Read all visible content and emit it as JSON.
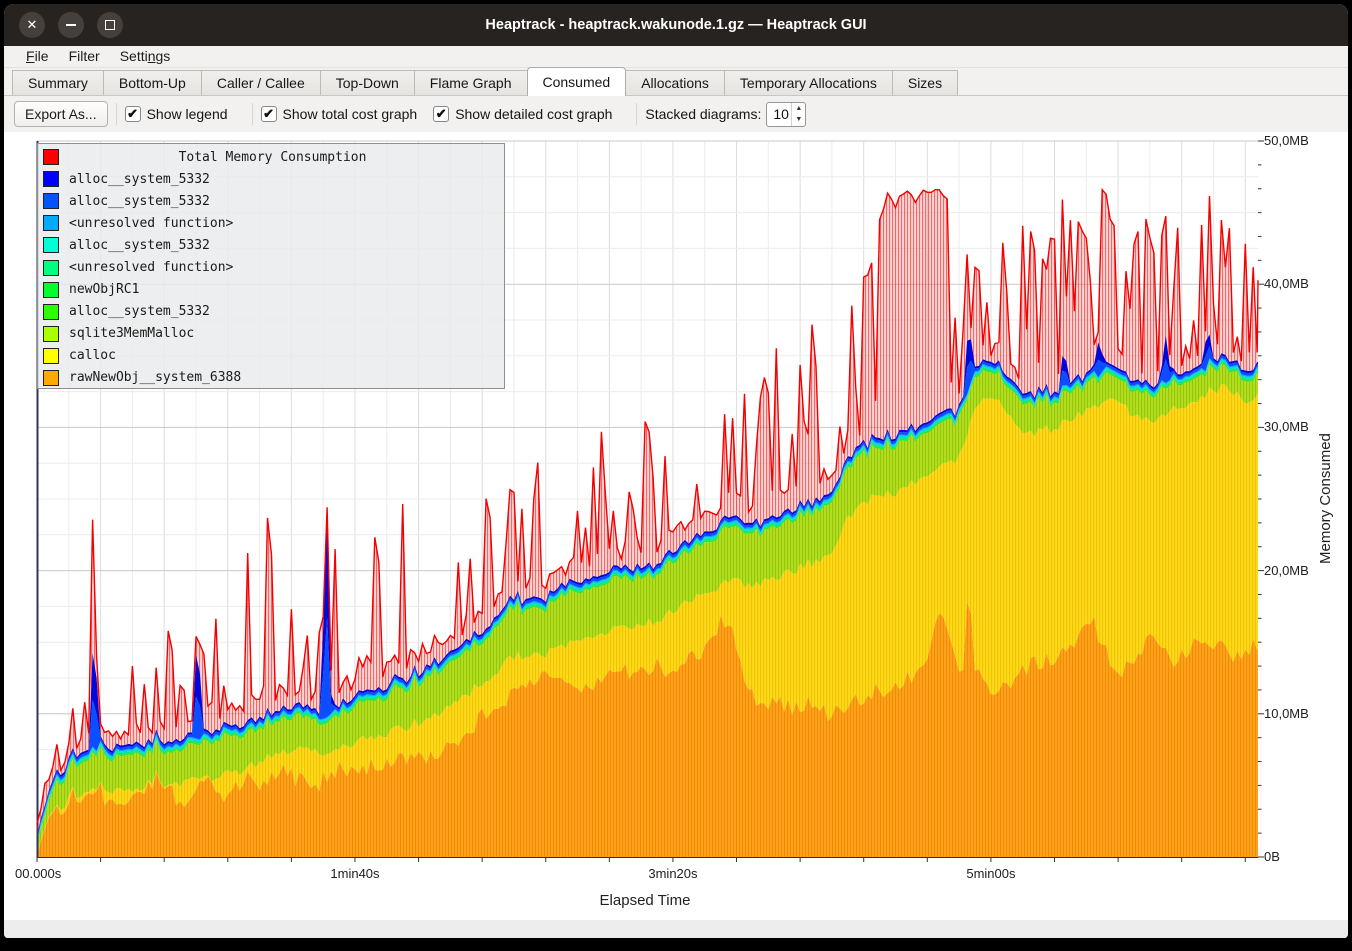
{
  "window": {
    "title": "Heaptrack - heaptrack.wakunode.1.gz — Heaptrack GUI",
    "controls": {
      "close": "✕",
      "minimize": "minimize",
      "maximize": "maximize"
    }
  },
  "menu_bar": {
    "items": [
      {
        "pre": "",
        "accel": "F",
        "post": "ile"
      },
      {
        "pre": "",
        "accel": "",
        "post": "Filter"
      },
      {
        "pre": "Setti",
        "accel": "n",
        "post": "gs"
      }
    ]
  },
  "tabs": {
    "active": "Consumed",
    "items": [
      "Summary",
      "Bottom-Up",
      "Caller / Callee",
      "Top-Down",
      "Flame Graph",
      "Consumed",
      "Allocations",
      "Temporary Allocations",
      "Sizes"
    ]
  },
  "toolbar": {
    "export_label": "Export As...",
    "checkboxes": [
      {
        "label": "Show legend",
        "checked": true,
        "mark": "✔"
      },
      {
        "label": "Show total cost graph",
        "checked": true,
        "mark": "✔"
      },
      {
        "label": "Show detailed cost graph",
        "checked": true,
        "mark": "✔"
      }
    ],
    "stacked_label": "Stacked diagrams:",
    "stacked_value": "10"
  },
  "chart_data": {
    "type": "area",
    "stacked": true,
    "title": "",
    "xlabel": "Elapsed Time",
    "ylabel": "Memory Consumed",
    "x_unit": "seconds",
    "x_range": [
      0,
      384
    ],
    "ylim": [
      0,
      50
    ],
    "grid": {
      "minor_x_s": 10,
      "major_x_s": 20,
      "minor_y_mb": 2.5,
      "major_y_mb": 10
    },
    "x_ticks": [
      {
        "t": 0,
        "label": "00.000s"
      },
      {
        "t": 100,
        "label": "1min40s"
      },
      {
        "t": 200,
        "label": "3min20s"
      },
      {
        "t": 300,
        "label": "5min00s"
      }
    ],
    "x_minor_tick_interval_s": 20,
    "y_ticks": [
      {
        "mb": 0,
        "label": "0B"
      },
      {
        "mb": 10,
        "label": "10,0MB"
      },
      {
        "mb": 20,
        "label": "20,0MB"
      },
      {
        "mb": 30,
        "label": "30,0MB"
      },
      {
        "mb": 40,
        "label": "40,0MB"
      },
      {
        "mb": 50,
        "label": "50,0MB"
      }
    ],
    "legend": [
      {
        "label": "Total Memory Consumption",
        "color": "#ff0000",
        "title_row": true
      },
      {
        "label": "alloc__system_5332",
        "color": "#0000ff"
      },
      {
        "label": "alloc__system_5332",
        "color": "#0055ff"
      },
      {
        "label": "<unresolved function>",
        "color": "#00aaff"
      },
      {
        "label": "alloc__system_5332",
        "color": "#00ffd5"
      },
      {
        "label": "<unresolved function>",
        "color": "#00ff80"
      },
      {
        "label": "newObjRC1",
        "color": "#00ff2b"
      },
      {
        "label": "alloc__system_5332",
        "color": "#2bff00"
      },
      {
        "label": "sqlite3MemMalloc",
        "color": "#aaff00"
      },
      {
        "label": "calloc",
        "color": "#ffff00"
      },
      {
        "label": "rawNewObj__system_6388",
        "color": "#ffaa00"
      }
    ],
    "series": {
      "orange_rawNewObj_mb": [
        [
          0,
          0.1
        ],
        [
          2,
          1.8
        ],
        [
          5,
          3.2
        ],
        [
          8,
          3.6
        ],
        [
          12,
          4.4
        ],
        [
          16,
          4.0
        ],
        [
          20,
          4.6
        ],
        [
          24,
          3.4
        ],
        [
          28,
          4.2
        ],
        [
          33,
          4.8
        ],
        [
          38,
          5.6
        ],
        [
          42,
          4.6
        ],
        [
          46,
          3.6
        ],
        [
          50,
          4.8
        ],
        [
          54,
          5.2
        ],
        [
          58,
          4.2
        ],
        [
          62,
          4.8
        ],
        [
          66,
          5.6
        ],
        [
          70,
          5.0
        ],
        [
          74,
          5.6
        ],
        [
          78,
          6.2
        ],
        [
          82,
          5.4
        ],
        [
          86,
          4.8
        ],
        [
          90,
          5.4
        ],
        [
          94,
          6.2
        ],
        [
          98,
          5.8
        ],
        [
          104,
          6.4
        ],
        [
          110,
          6.8
        ],
        [
          116,
          6.6
        ],
        [
          122,
          7.0
        ],
        [
          128,
          7.6
        ],
        [
          134,
          8.4
        ],
        [
          140,
          9.8
        ],
        [
          146,
          10.8
        ],
        [
          152,
          11.8
        ],
        [
          158,
          12.6
        ],
        [
          164,
          12.0
        ],
        [
          170,
          11.8
        ],
        [
          176,
          12.4
        ],
        [
          182,
          13.0
        ],
        [
          188,
          12.8
        ],
        [
          194,
          13.4
        ],
        [
          200,
          13.0
        ],
        [
          206,
          13.8
        ],
        [
          211,
          15.0
        ],
        [
          215,
          16.4
        ],
        [
          219,
          16.0
        ],
        [
          223,
          12.2
        ],
        [
          227,
          10.2
        ],
        [
          231,
          10.8
        ],
        [
          237,
          10.4
        ],
        [
          243,
          11.0
        ],
        [
          249,
          10.0
        ],
        [
          255,
          10.6
        ],
        [
          261,
          11.2
        ],
        [
          267,
          11.8
        ],
        [
          273,
          12.4
        ],
        [
          279,
          13.2
        ],
        [
          283,
          16.6
        ],
        [
          287,
          16.0
        ],
        [
          291,
          12.4
        ],
        [
          293,
          20.0
        ],
        [
          295,
          13.0
        ],
        [
          299,
          11.4
        ],
        [
          305,
          12.2
        ],
        [
          311,
          13.2
        ],
        [
          317,
          13.8
        ],
        [
          323,
          14.4
        ],
        [
          328,
          15.2
        ],
        [
          332,
          16.6
        ],
        [
          337,
          14.0
        ],
        [
          342,
          13.0
        ],
        [
          347,
          14.4
        ],
        [
          352,
          15.6
        ],
        [
          357,
          13.8
        ],
        [
          362,
          14.6
        ],
        [
          367,
          15.4
        ],
        [
          372,
          14.8
        ],
        [
          377,
          14.0
        ],
        [
          381,
          14.6
        ],
        [
          384,
          15.0
        ]
      ],
      "calloc_top_mb": [
        [
          0,
          0.2
        ],
        [
          10,
          4.2
        ],
        [
          20,
          4.8
        ],
        [
          30,
          4.6
        ],
        [
          40,
          5.0
        ],
        [
          50,
          5.4
        ],
        [
          58,
          5.6
        ],
        [
          66,
          6.2
        ],
        [
          74,
          7.0
        ],
        [
          82,
          7.6
        ],
        [
          90,
          7.2
        ],
        [
          100,
          8.0
        ],
        [
          110,
          8.6
        ],
        [
          120,
          9.4
        ],
        [
          130,
          10.4
        ],
        [
          140,
          12.2
        ],
        [
          150,
          14.0
        ],
        [
          160,
          14.2
        ],
        [
          170,
          15.0
        ],
        [
          178,
          15.6
        ],
        [
          186,
          16.0
        ],
        [
          194,
          16.4
        ],
        [
          202,
          17.4
        ],
        [
          210,
          18.4
        ],
        [
          218,
          19.2
        ],
        [
          226,
          19.0
        ],
        [
          234,
          19.6
        ],
        [
          242,
          20.4
        ],
        [
          250,
          21.2
        ],
        [
          256,
          24.0
        ],
        [
          262,
          25.0
        ],
        [
          270,
          25.4
        ],
        [
          278,
          26.4
        ],
        [
          284,
          27.0
        ],
        [
          290,
          28.0
        ],
        [
          296,
          31.6
        ],
        [
          302,
          32.2
        ],
        [
          308,
          30.0
        ],
        [
          314,
          29.6
        ],
        [
          320,
          30.0
        ],
        [
          326,
          30.6
        ],
        [
          332,
          31.4
        ],
        [
          338,
          32.2
        ],
        [
          344,
          31.0
        ],
        [
          350,
          30.4
        ],
        [
          356,
          31.0
        ],
        [
          362,
          31.8
        ],
        [
          368,
          32.4
        ],
        [
          374,
          33.0
        ],
        [
          380,
          31.6
        ],
        [
          384,
          32.2
        ]
      ],
      "green_band_mb": [
        [
          0,
          0.5
        ],
        [
          6,
          1.6
        ],
        [
          12,
          2.2
        ],
        [
          20,
          2.4
        ],
        [
          30,
          2.4
        ],
        [
          40,
          2.2
        ],
        [
          50,
          2.4
        ],
        [
          60,
          2.6
        ],
        [
          70,
          2.4
        ],
        [
          80,
          2.3
        ],
        [
          90,
          2.2
        ],
        [
          100,
          2.5
        ],
        [
          110,
          2.7
        ],
        [
          120,
          2.9
        ],
        [
          130,
          3.0
        ],
        [
          140,
          3.0
        ],
        [
          150,
          3.3
        ],
        [
          160,
          3.3
        ],
        [
          170,
          3.5
        ],
        [
          180,
          3.4
        ],
        [
          190,
          3.3
        ],
        [
          200,
          3.5
        ],
        [
          210,
          3.5
        ],
        [
          220,
          3.7
        ],
        [
          230,
          3.5
        ],
        [
          240,
          3.7
        ],
        [
          250,
          3.6
        ],
        [
          260,
          3.4
        ],
        [
          270,
          3.3
        ],
        [
          280,
          3.1
        ],
        [
          290,
          2.7
        ],
        [
          300,
          1.7
        ],
        [
          310,
          2.1
        ],
        [
          320,
          2.0
        ],
        [
          330,
          1.9
        ],
        [
          340,
          1.7
        ],
        [
          350,
          1.9
        ],
        [
          360,
          1.7
        ],
        [
          370,
          1.5
        ],
        [
          380,
          1.5
        ],
        [
          384,
          1.5
        ]
      ],
      "thin_layers_mb": [
        {
          "name": "alloc__system_5332",
          "mb": 0.12,
          "color": "#2ee62a"
        },
        {
          "name": "newObjRC1",
          "mb": 0.1,
          "color": "#00e689"
        },
        {
          "name": "<unresolved function>",
          "mb": 0.12,
          "color": "#00ddd2"
        },
        {
          "name": "<unresolved function>",
          "mb": 0.08,
          "color": "#00a5ff"
        },
        {
          "name": "alloc__system_5332",
          "mb": 0.18,
          "color": "#0b4dff"
        },
        {
          "name": "alloc__system_5332",
          "mb": 0.15,
          "color": "#0009d9"
        }
      ],
      "blue_spikes": [
        [
          18,
          9
        ],
        [
          50.5,
          8
        ],
        [
          91,
          16
        ],
        [
          293,
          5
        ],
        [
          323,
          2.5
        ],
        [
          334,
          2.5
        ],
        [
          355,
          3
        ],
        [
          368,
          2.5
        ]
      ],
      "red_spike_envelope_mb": [
        [
          0,
          1.5
        ],
        [
          6,
          3
        ],
        [
          12,
          8
        ],
        [
          18,
          10
        ],
        [
          24,
          8
        ],
        [
          30,
          8
        ],
        [
          36,
          9
        ],
        [
          42,
          8
        ],
        [
          48,
          10
        ],
        [
          54,
          14
        ],
        [
          60,
          16
        ],
        [
          66,
          15
        ],
        [
          72,
          16
        ],
        [
          78,
          10
        ],
        [
          84,
          9
        ],
        [
          90,
          10
        ],
        [
          96,
          12
        ],
        [
          102,
          14
        ],
        [
          108,
          16
        ],
        [
          114,
          14
        ],
        [
          120,
          13
        ],
        [
          126,
          11
        ],
        [
          132,
          10
        ],
        [
          138,
          11
        ],
        [
          144,
          10
        ],
        [
          150,
          9
        ],
        [
          156,
          11
        ],
        [
          162,
          9
        ],
        [
          168,
          11
        ],
        [
          174,
          9
        ],
        [
          180,
          11
        ],
        [
          186,
          10
        ],
        [
          192,
          11
        ],
        [
          198,
          12
        ],
        [
          204,
          10
        ],
        [
          210,
          11
        ],
        [
          216,
          12
        ],
        [
          222,
          13
        ],
        [
          228,
          12
        ],
        [
          234,
          13
        ],
        [
          240,
          14
        ],
        [
          246,
          12
        ],
        [
          252,
          11
        ],
        [
          258,
          12
        ],
        [
          264,
          16
        ],
        [
          268,
          17.5
        ],
        [
          272,
          17.5
        ],
        [
          276,
          17
        ],
        [
          280,
          17
        ],
        [
          284,
          16.5
        ],
        [
          288,
          15
        ],
        [
          292,
          8
        ],
        [
          296,
          7
        ],
        [
          300,
          8
        ],
        [
          304,
          10
        ],
        [
          308,
          12
        ],
        [
          312,
          12
        ],
        [
          316,
          12
        ],
        [
          320,
          12
        ],
        [
          324,
          12
        ],
        [
          328,
          11
        ],
        [
          332,
          12
        ],
        [
          336,
          12
        ],
        [
          340,
          11
        ],
        [
          344,
          12
        ],
        [
          348,
          12
        ],
        [
          352,
          10
        ],
        [
          356,
          11
        ],
        [
          360,
          12
        ],
        [
          364,
          11
        ],
        [
          368,
          10
        ],
        [
          372,
          11
        ],
        [
          376,
          10
        ],
        [
          380,
          10
        ],
        [
          384,
          9
        ]
      ],
      "red_plateau": {
        "t_start": 266,
        "t_end": 287,
        "mb": 45.8
      },
      "red_max_mb": 46.6
    },
    "colors": {
      "orange_fill": "#ffa21f",
      "orange_stripe": "#ef8c00",
      "yellow_fill": "#ffd91c",
      "yellow_stripe": "#eec400",
      "green_fill": "#b2df1d",
      "green_stripe": "#97c40c",
      "red_stroke": "#f30000",
      "red_fill": "rgba(255,40,40,0.20)",
      "red_stripe": "rgba(225,0,0,0.50)",
      "axis_line": "#33335a",
      "grid_minor": "#ececec",
      "grid_major": "#c9c9c9"
    }
  }
}
